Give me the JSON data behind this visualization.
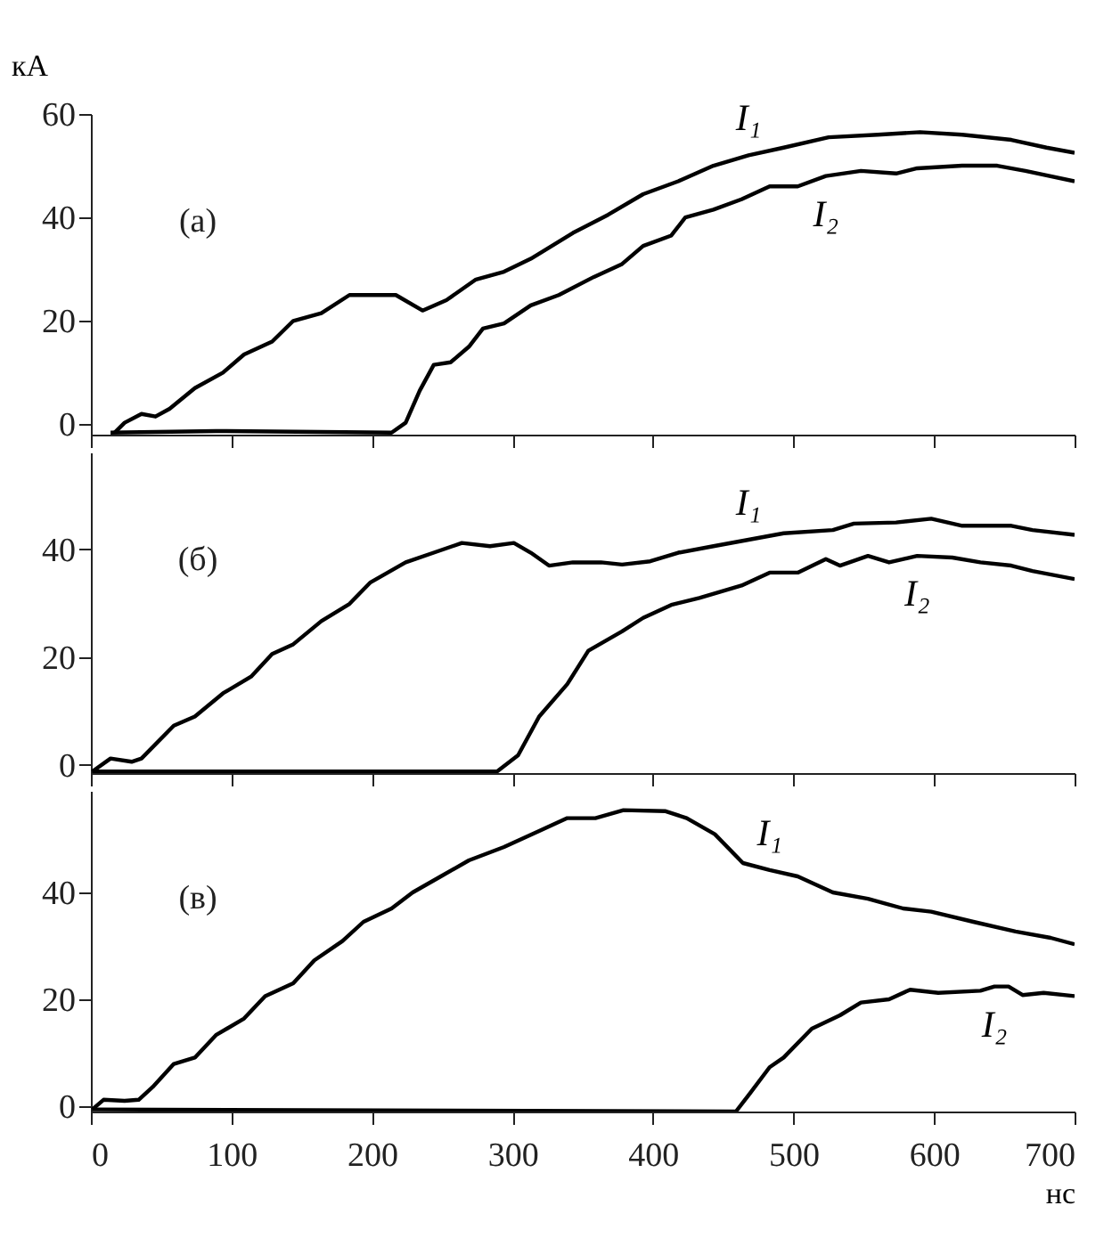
{
  "chart_data": [
    {
      "type": "line",
      "ylabel": "кА",
      "annotations": [
        "(а)"
      ],
      "xlim": [
        0,
        700
      ],
      "xticks": [
        0,
        100,
        200,
        300,
        400,
        500,
        600,
        700
      ],
      "ylim": [
        -2,
        60
      ],
      "yticks": [
        0,
        20,
        40,
        60
      ],
      "tick_labels": "y",
      "series": [
        {
          "name": "I₁",
          "color": "#000000",
          "x": [
            17,
            24,
            36,
            46,
            56,
            74,
            94,
            109,
            129,
            144,
            164,
            184,
            217,
            236,
            253,
            274,
            294,
            313,
            343,
            368,
            393,
            418,
            443,
            468,
            493,
            525,
            560,
            590,
            620,
            655,
            680,
            700
          ],
          "values": [
            -1.6,
            0.3,
            2,
            1.5,
            3,
            7,
            10,
            13.5,
            16,
            20,
            21.5,
            25,
            25,
            22,
            24,
            28,
            29.5,
            32,
            37,
            40.5,
            44.5,
            47,
            50,
            52,
            53.5,
            55.5,
            56,
            56.5,
            56,
            55,
            53.5,
            52.5
          ]
        },
        {
          "name": "I₂",
          "color": "#000000",
          "x": [
            14,
            89,
            214,
            224,
            234,
            244,
            256,
            269,
            279,
            294,
            313,
            333,
            358,
            378,
            393,
            413,
            423,
            443,
            463,
            483,
            503,
            523,
            548,
            573,
            588,
            620,
            645,
            665,
            700
          ],
          "values": [
            -1.6,
            -1.3,
            -1.6,
            0.3,
            6.5,
            11.5,
            12,
            15,
            18.5,
            19.5,
            23,
            25,
            28.5,
            31,
            34.5,
            36.5,
            40,
            41.5,
            43.5,
            46,
            46,
            48,
            49,
            48.5,
            49.5,
            50,
            50,
            49,
            47
          ]
        }
      ]
    },
    {
      "type": "line",
      "annotations": [
        "(б)"
      ],
      "xlim": [
        0,
        700
      ],
      "xticks": [
        0,
        100,
        200,
        300,
        400,
        500,
        600,
        700
      ],
      "ylim": [
        -1.5,
        58
      ],
      "yticks": [
        0,
        20,
        40
      ],
      "tick_labels": "y",
      "series": [
        {
          "name": "I₁",
          "color": "#000000",
          "x": [
            1,
            14,
            29,
            36,
            59,
            74,
            94,
            114,
            129,
            144,
            164,
            184,
            199,
            224,
            244,
            264,
            284,
            301,
            313,
            326,
            343,
            363,
            378,
            398,
            418,
            443,
            468,
            493,
            528,
            543,
            573,
            598,
            620,
            655,
            670,
            700
          ],
          "values": [
            -1.2,
            1.2,
            0.6,
            1.2,
            7.3,
            9,
            13.3,
            16.4,
            20.6,
            22.4,
            26.7,
            29.9,
            33.9,
            37.6,
            39.4,
            41.2,
            40.6,
            41.2,
            39.4,
            37,
            37.6,
            37.6,
            37.2,
            37.8,
            39.4,
            40.6,
            41.8,
            43,
            43.6,
            44.8,
            45,
            45.7,
            44.4,
            44.4,
            43.6,
            42.7
          ]
        },
        {
          "name": "I₂",
          "color": "#000000",
          "x": [
            1,
            289,
            304,
            319,
            339,
            354,
            378,
            393,
            413,
            433,
            463,
            483,
            503,
            523,
            533,
            553,
            568,
            588,
            613,
            633,
            655,
            670,
            700
          ],
          "values": [
            -1.2,
            -1.2,
            1.8,
            9,
            15,
            21.2,
            24.8,
            27.3,
            29.7,
            31,
            33.3,
            35.7,
            35.7,
            38.2,
            37,
            38.8,
            37.6,
            38.8,
            38.5,
            37.6,
            37,
            36,
            34.5
          ]
        }
      ]
    },
    {
      "type": "line",
      "xlabel": "нс",
      "annotations": [
        "(в)"
      ],
      "xlim": [
        0,
        700
      ],
      "xticks": [
        0,
        100,
        200,
        300,
        400,
        500,
        600,
        700
      ],
      "ylim": [
        -1,
        59
      ],
      "yticks": [
        0,
        20,
        40
      ],
      "series": [
        {
          "name": "I₁",
          "color": "#000000",
          "x": [
            1,
            9,
            24,
            34,
            44,
            59,
            74,
            89,
            109,
            124,
            144,
            159,
            179,
            194,
            214,
            229,
            249,
            269,
            294,
            319,
            339,
            359,
            379,
            409,
            424,
            444,
            464,
            483,
            503,
            528,
            553,
            578,
            598,
            628,
            658,
            683,
            700
          ],
          "values": [
            -0.6,
            1.2,
            1,
            1.2,
            3.6,
            7.9,
            9.1,
            13.3,
            16.4,
            20.6,
            23,
            27.3,
            30.9,
            34.5,
            37,
            40,
            43,
            46,
            48.5,
            51.5,
            53.9,
            53.9,
            55.4,
            55.2,
            53.9,
            50.9,
            45.5,
            44.2,
            43,
            40,
            38.8,
            37,
            36.4,
            34.5,
            32.7,
            31.5,
            30.3
          ]
        },
        {
          "name": "I₂",
          "color": "#000000",
          "x": [
            1,
            459,
            469,
            483,
            493,
            513,
            533,
            548,
            568,
            583,
            603,
            633,
            643,
            653,
            663,
            678,
            700
          ],
          "values": [
            -0.6,
            -1,
            2.4,
            7.3,
            9.1,
            14.5,
            17,
            19.4,
            20,
            21.8,
            21.2,
            21.6,
            22.4,
            22.4,
            20.8,
            21.2,
            20.6
          ]
        }
      ]
    }
  ]
}
